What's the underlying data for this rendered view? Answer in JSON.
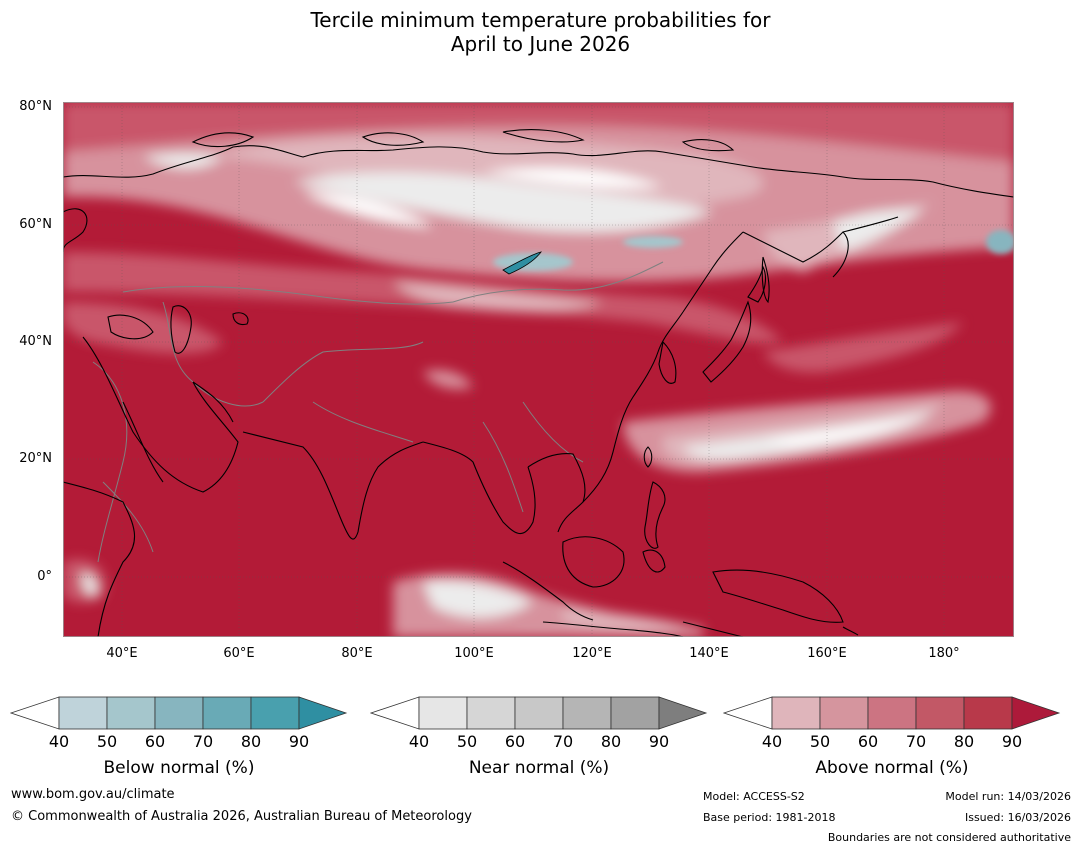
{
  "title": {
    "line1": "Tercile minimum temperature probabilities for",
    "line2": "April to June 2026"
  },
  "map": {
    "y_axis_labels": [
      "80°N",
      "60°N",
      "40°N",
      "20°N",
      "0°"
    ],
    "x_axis_labels": [
      "40°E",
      "60°E",
      "80°E",
      "100°E",
      "120°E",
      "140°E",
      "160°E",
      "180°"
    ],
    "colors": {
      "above_dominant": "#b31b37",
      "ocean_land_pink": "#c9566a",
      "near_normal": "#e6e6e6",
      "below_hint": "#9fc5cf",
      "coastline": "#000000",
      "border": "#808080"
    }
  },
  "colorbars": [
    {
      "title": "Below normal (%)",
      "ticks": [
        "40",
        "50",
        "60",
        "70",
        "80",
        "90"
      ],
      "colors": [
        "#ffffff",
        "#bfd3da",
        "#a5c6cc",
        "#87b5bf",
        "#69aab6",
        "#49a0ae",
        "#2f8fa2"
      ]
    },
    {
      "title": "Near normal (%)",
      "ticks": [
        "40",
        "50",
        "60",
        "70",
        "80",
        "90"
      ],
      "colors": [
        "#ffffff",
        "#e6e6e6",
        "#d6d6d6",
        "#c8c8c8",
        "#b5b5b5",
        "#a2a2a2",
        "#7e7e7e"
      ]
    },
    {
      "title": "Above normal (%)",
      "ticks": [
        "40",
        "50",
        "60",
        "70",
        "80",
        "90"
      ],
      "colors": [
        "#ffffff",
        "#dfb5bb",
        "#d5959e",
        "#cc7482",
        "#c25866",
        "#b8394a",
        "#ad1a3a"
      ]
    }
  ],
  "footer": {
    "website": "www.bom.gov.au/climate",
    "copyright": "© Commonwealth of Australia 2026, Australian Bureau of Meteorology",
    "model": "Model: ACCESS-S2",
    "base_period": "Base period: 1981-2018",
    "model_run": "Model run: 14/03/2026",
    "issued": "Issued: 16/03/2026",
    "disclaimer": "Boundaries are not considered authoritative"
  }
}
